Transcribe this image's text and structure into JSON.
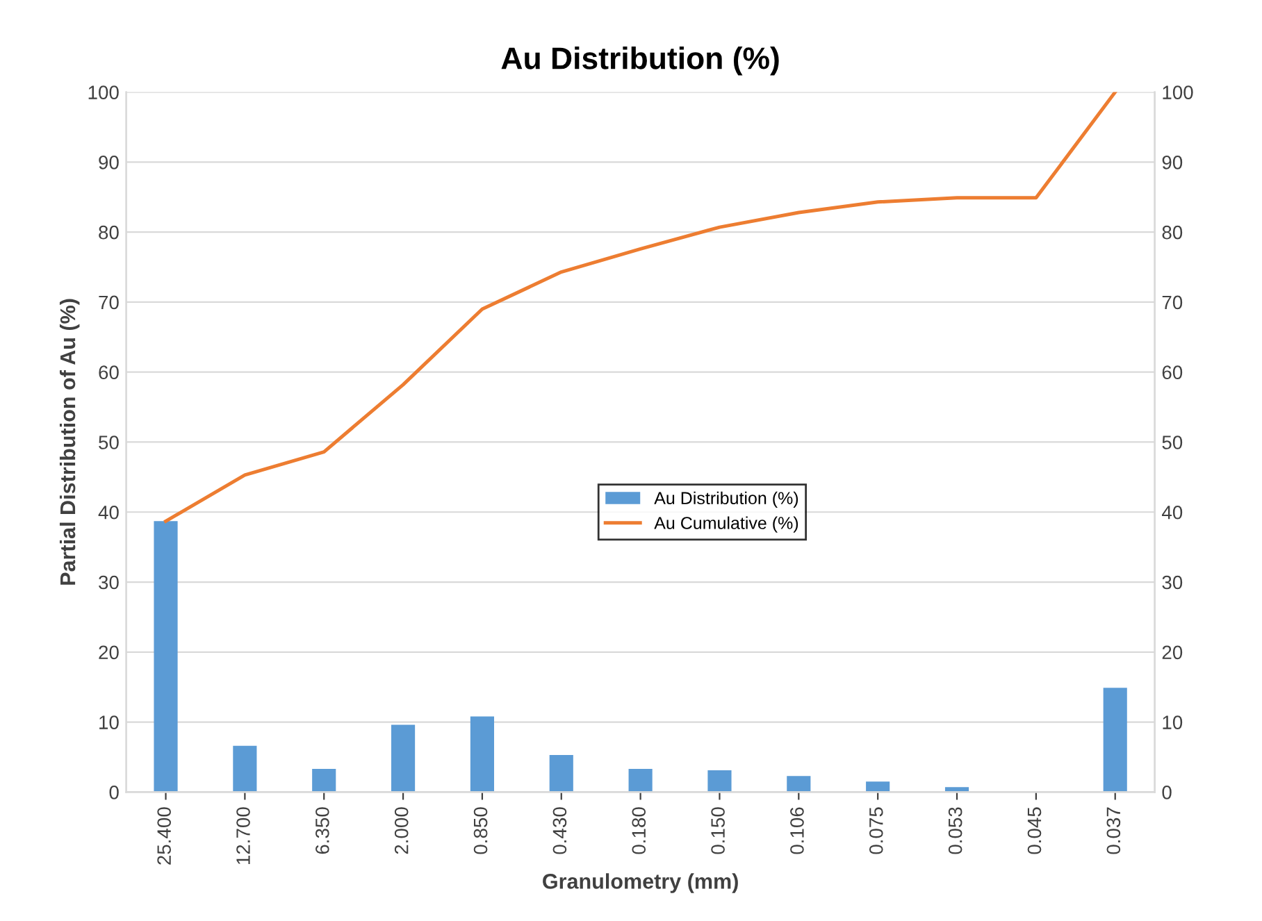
{
  "chart_data": {
    "type": "bar",
    "title": "Au Distribution (%)",
    "xlabel": "Granulometry (mm)",
    "ylabel": "Partial Distribution of Au (%)",
    "categories": [
      "25.400",
      "12.700",
      "6.350",
      "2.000",
      "0.850",
      "0.430",
      "0.180",
      "0.150",
      "0.106",
      "0.075",
      "0.053",
      "0.045",
      "0.037"
    ],
    "series": [
      {
        "name": "Au Distribution (%)",
        "color": "#5b9bd5",
        "values": [
          38.7,
          6.6,
          3.3,
          9.6,
          10.8,
          5.3,
          3.3,
          3.1,
          2.3,
          1.5,
          0.7,
          0,
          14.9
        ]
      },
      {
        "name": "Au Cumulative (%)",
        "type": "line",
        "color": "#ed7d31",
        "values": [
          38.7,
          45.3,
          48.6,
          58.2,
          69.0,
          74.3,
          77.6,
          80.7,
          82.8,
          84.3,
          84.9,
          84.9,
          100
        ]
      }
    ],
    "ylim": [
      0,
      100
    ],
    "yticks": [
      0,
      10,
      20,
      30,
      40,
      50,
      60,
      70,
      80,
      90,
      100
    ],
    "y2lim": [
      0,
      100
    ],
    "y2ticks": [
      0,
      10,
      20,
      30,
      40,
      50,
      60,
      70,
      80,
      90,
      100
    ],
    "grid": "y",
    "legend": "center"
  }
}
